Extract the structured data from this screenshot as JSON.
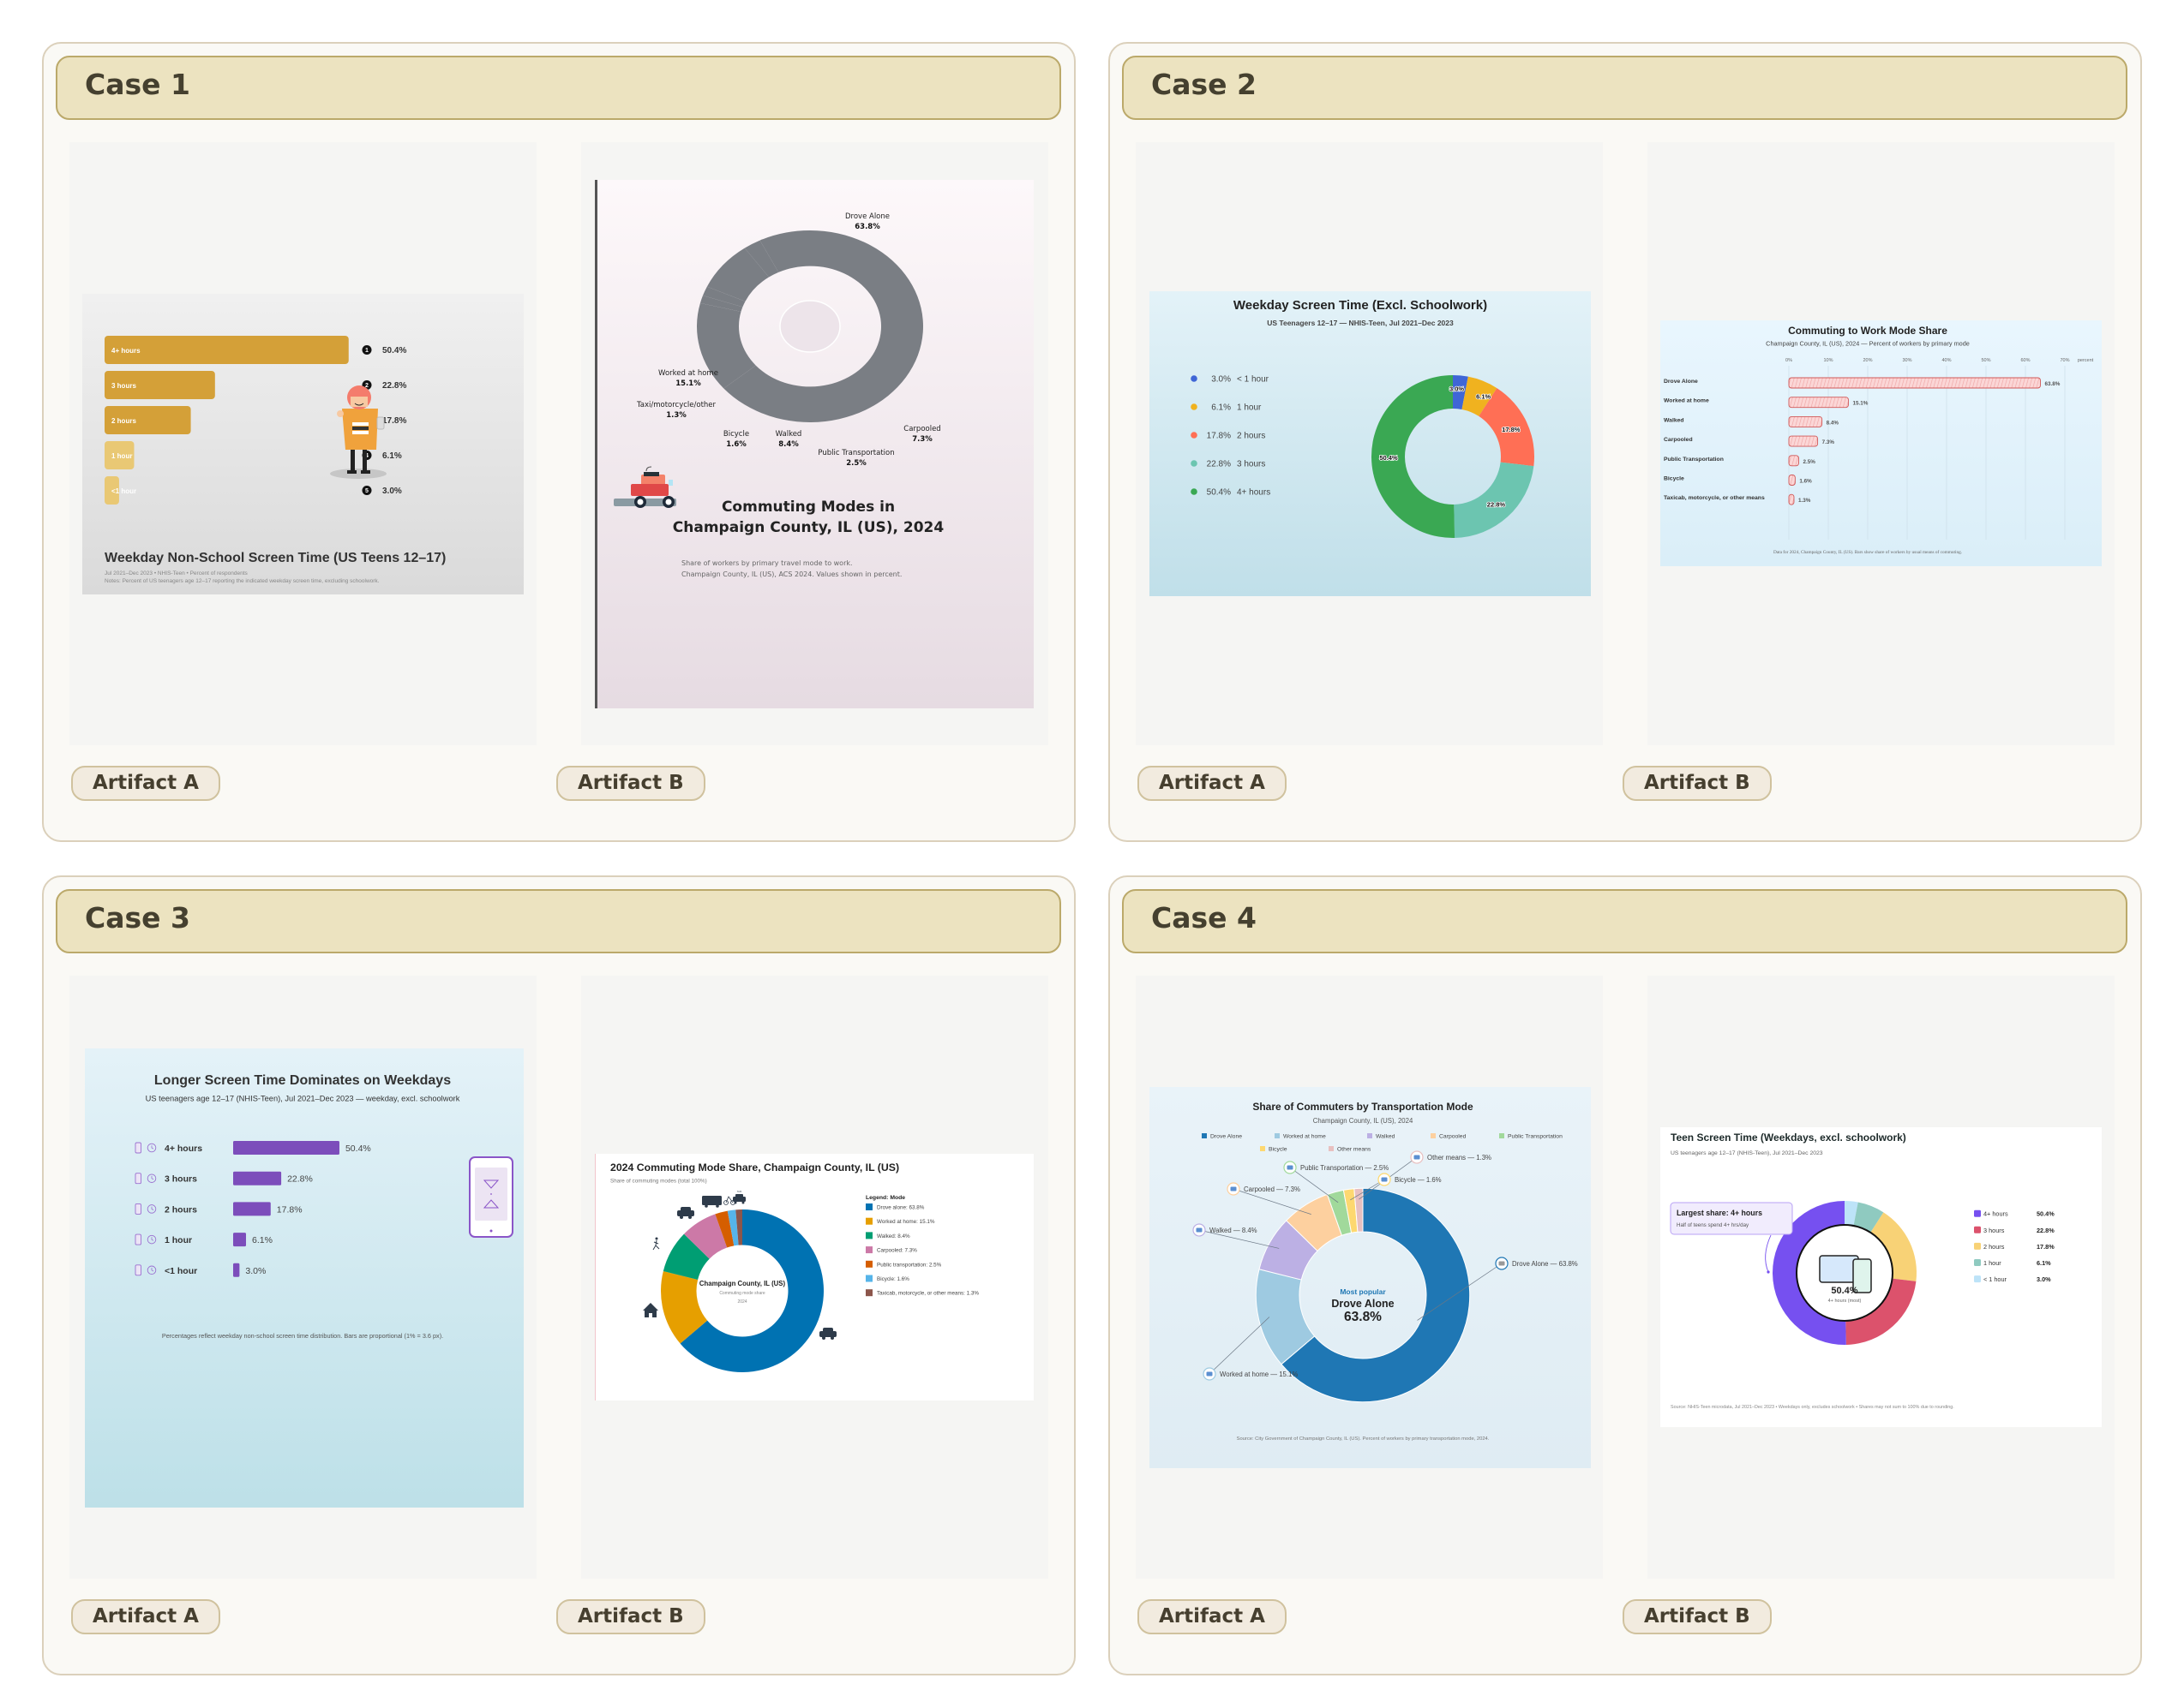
{
  "cases": [
    {
      "label": "Case 1",
      "artifacts": [
        {
          "label": "Artifact A"
        },
        {
          "label": "Artifact B"
        }
      ]
    },
    {
      "label": "Case 2",
      "artifacts": [
        {
          "label": "Artifact A"
        },
        {
          "label": "Artifact B"
        }
      ]
    },
    {
      "label": "Case 3",
      "artifacts": [
        {
          "label": "Artifact A"
        },
        {
          "label": "Artifact B"
        }
      ]
    },
    {
      "label": "Case 4",
      "artifacts": [
        {
          "label": "Artifact A"
        },
        {
          "label": "Artifact B"
        }
      ]
    }
  ],
  "chart_data": [
    {
      "type": "bar",
      "orientation": "horizontal",
      "title": "Weekday Non-School Screen Time (US Teens 12–17)",
      "subtitle": "Jul 2021–Dec 2023 • NHIS-Teen • Percent of respondents",
      "notes": "Notes: Percent of US teenagers age 12–17 reporting the indicated weekday screen time, excluding schoolwork.",
      "categories": [
        "4+ hours",
        "3 hours",
        "2 hours",
        "1 hour",
        "<1 hour"
      ],
      "values": [
        50.4,
        22.8,
        17.8,
        6.1,
        3.0
      ],
      "value_labels": [
        "50.4%",
        "22.8%",
        "17.8%",
        "6.1%",
        "3.0%"
      ],
      "ranks": [
        "1",
        "2",
        "3",
        "4",
        "5"
      ],
      "colors": {
        "major": "#d4a038",
        "minor": "#e9c874"
      },
      "illustration": "teen-with-phone"
    },
    {
      "type": "pie",
      "variant": "donut",
      "title_lines": [
        "Commuting Modes in",
        "Champaign County, IL (US), 2024"
      ],
      "subtitle_lines": [
        "Share of workers by primary travel mode to work.",
        "Champaign County, IL (US), ACS 2024. Values shown in percent."
      ],
      "categories": [
        "Drove Alone",
        "Worked at home",
        "Taxi/motorcycle/other",
        "Bicycle",
        "Walked",
        "Public Transportation",
        "Carpooled"
      ],
      "values": [
        63.8,
        15.1,
        1.3,
        1.6,
        8.4,
        2.5,
        7.3
      ],
      "value_labels": [
        "63.8%",
        "15.1%",
        "1.3%",
        "1.6%",
        "8.4%",
        "2.5%",
        "7.3%"
      ],
      "color": "#7a7e84",
      "illustration": "car-icon"
    },
    {
      "type": "pie",
      "variant": "donut",
      "title": "Weekday Screen Time (Excl. Schoolwork)",
      "subtitle": "US Teenagers 12–17 — NHIS-Teen, Jul 2021–Dec 2023",
      "categories": [
        "< 1 hour",
        "1 hour",
        "2 hours",
        "3 hours",
        "4+ hours"
      ],
      "values": [
        3.0,
        6.1,
        17.8,
        22.8,
        50.4
      ],
      "value_labels": [
        "3.0%",
        "6.1%",
        "17.8%",
        "22.8%",
        "50.4%"
      ],
      "colors": [
        "#3f66d6",
        "#f0b21f",
        "#ff6f55",
        "#6cc5b0",
        "#3aa853"
      ],
      "legend": "left"
    },
    {
      "type": "bar",
      "orientation": "horizontal",
      "title": "Commuting to Work Mode Share",
      "subtitle": "Champaign County, IL (US), 2024 — Percent of workers by primary mode",
      "categories": [
        "Drove Alone",
        "Worked at home",
        "Walked",
        "Carpooled",
        "Public Transportation",
        "Bicycle",
        "Taxicab, motorcycle, or other means"
      ],
      "values": [
        63.8,
        15.1,
        8.4,
        7.3,
        2.5,
        1.6,
        1.3
      ],
      "value_labels": [
        "63.8%",
        "15.1%",
        "8.4%",
        "7.3%",
        "2.5%",
        "1.6%",
        "1.3%"
      ],
      "xlim": [
        0,
        70
      ],
      "x_ticks": [
        "0%",
        "10%",
        "20%",
        "30%",
        "40%",
        "50%",
        "60%",
        "70%"
      ],
      "xlabel": "percent",
      "grid": true,
      "footnote": "Data for 2024, Champaign County, IL (US). Bars show share of workers by usual means of commuting.",
      "colors": {
        "fill": "#fbd6d6",
        "stroke": "#d05858"
      }
    },
    {
      "type": "bar",
      "orientation": "horizontal",
      "title": "Longer Screen Time Dominates on Weekdays",
      "subtitle": "US teenagers age 12–17 (NHIS-Teen), Jul 2021–Dec 2023 — weekday, excl. schoolwork",
      "categories": [
        "4+ hours",
        "3 hours",
        "2 hours",
        "1 hour",
        "<1 hour"
      ],
      "values": [
        50.4,
        22.8,
        17.8,
        6.1,
        3.0
      ],
      "value_labels": [
        "50.4%",
        "22.8%",
        "17.8%",
        "6.1%",
        "3.0%"
      ],
      "footnote": "Percentages reflect weekday non-school screen time distribution. Bars are proportional (1% = 3.6 px).",
      "colors": {
        "bar": "#7c4dbb",
        "icon": "#9a70d0"
      },
      "illustration": "phone-hourglass"
    },
    {
      "type": "pie",
      "variant": "donut",
      "title": "2024 Commuting Mode Share, Champaign County, IL (US)",
      "subtitle": "Share of commuting modes (total 100%)",
      "center_lines": [
        "Champaign County, IL (US)",
        "Commuting mode share",
        "2024"
      ],
      "legend_title": "Legend: Mode",
      "categories": [
        "Drove alone",
        "Worked at home",
        "Walked",
        "Carpooled",
        "Public transportation",
        "Bicycle",
        "Taxicab, motorcycle, or other means"
      ],
      "values": [
        63.8,
        15.1,
        8.4,
        7.3,
        2.5,
        1.6,
        1.3
      ],
      "legend_labels": [
        "Drove alone: 63.8%",
        "Worked at home: 15.1%",
        "Walked: 8.4%",
        "Carpooled: 7.3%",
        "Public transportation: 2.5%",
        "Bicycle: 1.6%",
        "Taxicab, motorcycle, or other means: 1.3%"
      ],
      "colors": [
        "#0072b2",
        "#e69f00",
        "#009e73",
        "#cc79a7",
        "#d55e00",
        "#56b4e9",
        "#8c564b"
      ],
      "taxi_sign": "TAXI",
      "legend": "right"
    },
    {
      "type": "pie",
      "variant": "donut",
      "title": "Share of Commuters by Transportation Mode",
      "subtitle": "Champaign County, IL (US), 2024",
      "categories": [
        "Drove Alone",
        "Worked at home",
        "Walked",
        "Carpooled",
        "Public Transportation",
        "Bicycle",
        "Other means"
      ],
      "values": [
        63.8,
        15.1,
        8.4,
        7.3,
        2.5,
        1.6,
        1.3
      ],
      "callouts": [
        "Drove Alone — 63.8%",
        "Worked at home — 15.1%",
        "Walked — 8.4%",
        "Carpooled — 7.3%",
        "Public Transportation — 2.5%",
        "Bicycle — 1.6%",
        "Other means — 1.3%"
      ],
      "colors": [
        "#1f77b4",
        "#9ecae1",
        "#bcb0e4",
        "#fdd09f",
        "#a1d99b",
        "#fdd870",
        "#e8c0c0"
      ],
      "center": {
        "kicker": "Most popular",
        "name": "Drove Alone",
        "value": "63.8%"
      },
      "source": "Source: City Government of Champaign County, IL (US). Percent of workers by primary transportation mode, 2024.",
      "legend": "top"
    },
    {
      "type": "pie",
      "variant": "donut",
      "title": "Teen Screen Time (Weekdays, excl. schoolwork)",
      "subtitle": "US teenagers age 12–17 (NHIS-Teen), Jul 2021–Dec 2023",
      "categories": [
        "4+ hours",
        "3 hours",
        "2 hours",
        "1 hour",
        "< 1 hour"
      ],
      "values": [
        50.4,
        22.8,
        17.8,
        6.1,
        3.0
      ],
      "value_labels": [
        "50.4%",
        "22.8%",
        "17.8%",
        "6.1%",
        "3.0%"
      ],
      "colors": [
        "#7650f0",
        "#dc526c",
        "#f8d276",
        "#8fcac0",
        "#bde3f8"
      ],
      "center": {
        "value": "50.4%",
        "label": "4+ hours (most)"
      },
      "callout": {
        "title": "Largest share: 4+ hours",
        "text": "Half of teens spend 4+ hrs/day"
      },
      "source": "Source: NHIS-Teen microdata, Jul 2021–Dec 2023 • Weekdays only, excludes schoolwork • Shares may not sum to 100% due to rounding.",
      "legend": "right"
    }
  ]
}
